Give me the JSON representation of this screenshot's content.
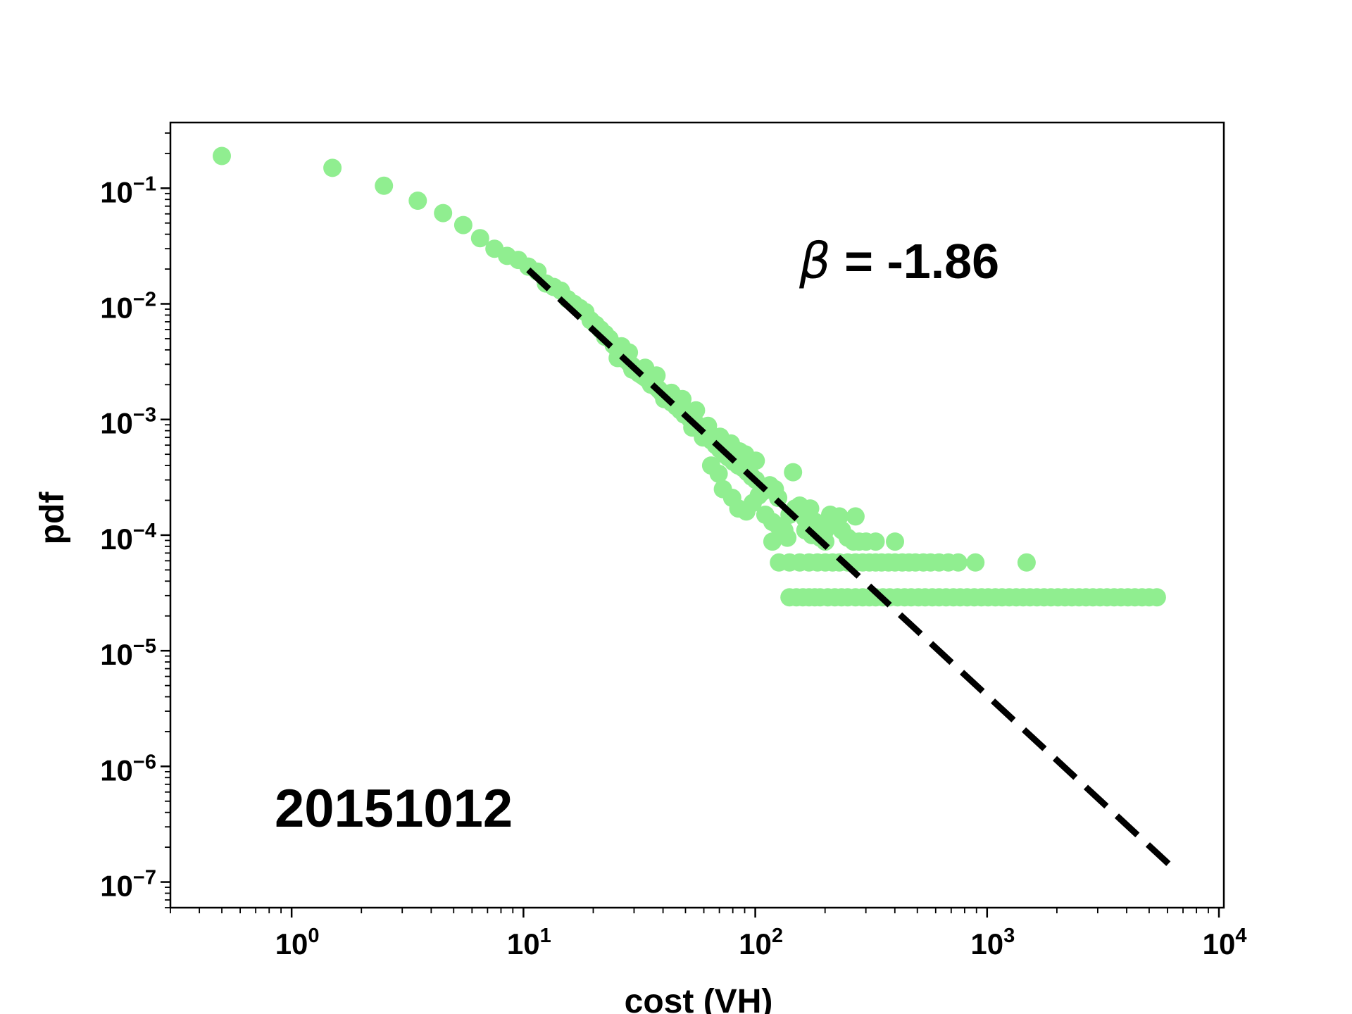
{
  "chart_data": {
    "type": "scatter",
    "title": "",
    "xlabel": "cost (VH)",
    "ylabel": "pdf",
    "xscale": "log",
    "yscale": "log",
    "xlim": [
      0.3,
      10500
    ],
    "ylim": [
      6e-08,
      0.37
    ],
    "grid": false,
    "x_ticks": [
      {
        "base": "10",
        "exp": "0",
        "value": 1
      },
      {
        "base": "10",
        "exp": "1",
        "value": 10
      },
      {
        "base": "10",
        "exp": "2",
        "value": 100
      },
      {
        "base": "10",
        "exp": "3",
        "value": 1000
      },
      {
        "base": "10",
        "exp": "4",
        "value": 10000
      }
    ],
    "y_ticks": [
      {
        "base": "10",
        "exp": "−1",
        "value": 0.1
      },
      {
        "base": "10",
        "exp": "−2",
        "value": 0.01
      },
      {
        "base": "10",
        "exp": "−3",
        "value": 0.001
      },
      {
        "base": "10",
        "exp": "−4",
        "value": 0.0001
      },
      {
        "base": "10",
        "exp": "−5",
        "value": 1e-05
      },
      {
        "base": "10",
        "exp": "−6",
        "value": 1e-06
      },
      {
        "base": "10",
        "exp": "−7",
        "value": 1e-07
      }
    ],
    "annotations": {
      "beta_symbol": "β",
      "beta_value": " = -1.86",
      "date": "20151012"
    },
    "marker_color": "#90ee90",
    "fit_line_color": "#000000",
    "fit": {
      "slope": -1.86,
      "x": [
        10.5,
        6400
      ],
      "y": [
        0.0197,
        1.3e-07
      ]
    },
    "series": [
      {
        "points": [
          [
            0.5,
            0.19
          ],
          [
            1.5,
            0.15
          ],
          [
            2.5,
            0.105
          ],
          [
            3.5,
            0.078
          ],
          [
            4.5,
            0.061
          ],
          [
            5.5,
            0.048
          ],
          [
            6.5,
            0.037
          ],
          [
            7.5,
            0.03
          ],
          [
            8.5,
            0.026
          ],
          [
            9.5,
            0.024
          ],
          [
            10.5,
            0.021
          ],
          [
            11.5,
            0.019
          ],
          [
            12.5,
            0.015
          ],
          [
            13.5,
            0.014
          ],
          [
            14.5,
            0.013
          ],
          [
            15.5,
            0.011
          ],
          [
            16.5,
            0.01
          ],
          [
            17.5,
            0.0092
          ],
          [
            18.5,
            0.0085
          ],
          [
            19.5,
            0.0072
          ],
          [
            20.5,
            0.0066
          ],
          [
            21.5,
            0.006
          ],
          [
            22.5,
            0.0055
          ],
          [
            23.5,
            0.005
          ],
          [
            24.5,
            0.0044
          ],
          [
            25.5,
            0.004
          ],
          [
            26.5,
            0.0036
          ],
          [
            27.5,
            0.0033
          ],
          [
            28.5,
            0.0031
          ],
          [
            29.5,
            0.0029
          ],
          [
            30.5,
            0.0027
          ],
          [
            31.5,
            0.0025
          ],
          [
            32.5,
            0.0024
          ],
          [
            33.5,
            0.0023
          ],
          [
            34.5,
            0.0022
          ],
          [
            35.5,
            0.0021
          ],
          [
            36.5,
            0.002
          ],
          [
            37.5,
            0.0019
          ],
          [
            38.5,
            0.0018
          ],
          [
            39.5,
            0.0017
          ],
          [
            41.5,
            0.0016
          ],
          [
            43.5,
            0.0014
          ],
          [
            45.5,
            0.0013
          ],
          [
            47.5,
            0.0012
          ],
          [
            49.5,
            0.0011
          ],
          [
            52.5,
            0.001
          ],
          [
            55.5,
            0.00092
          ],
          [
            58.5,
            0.00083
          ],
          [
            61.5,
            0.00075
          ],
          [
            64.5,
            0.00066
          ],
          [
            67.5,
            0.0006
          ],
          [
            70.5,
            0.00055
          ],
          [
            73.5,
            0.0005
          ],
          [
            76.5,
            0.00047
          ],
          [
            80.5,
            0.00043
          ],
          [
            84.5,
            0.0004
          ],
          [
            88.5,
            0.00038
          ],
          [
            92.5,
            0.00035
          ],
          [
            96.5,
            0.00032
          ],
          [
            100.5,
            0.0003
          ],
          [
            22.5,
            0.0052
          ],
          [
            26.5,
            0.0043
          ],
          [
            28.5,
            0.0038
          ],
          [
            33.5,
            0.0028
          ],
          [
            37.5,
            0.0024
          ],
          [
            43.5,
            0.0017
          ],
          [
            48.5,
            0.0015
          ],
          [
            55.5,
            0.0012
          ],
          [
            62.5,
            0.00088
          ],
          [
            70.5,
            0.00071
          ],
          [
            78.5,
            0.00062
          ],
          [
            85.5,
            0.00053
          ],
          [
            90.5,
            0.0005
          ],
          [
            100.5,
            0.00044
          ],
          [
            25.5,
            0.0034
          ],
          [
            29.5,
            0.0027
          ],
          [
            35.5,
            0.002
          ],
          [
            40.5,
            0.0015
          ],
          [
            53.5,
            0.00085
          ],
          [
            59.5,
            0.0007
          ],
          [
            64.5,
            0.0004
          ],
          [
            69.5,
            0.00034
          ],
          [
            72.5,
            0.00025
          ],
          [
            79.5,
            0.00021
          ],
          [
            84.5,
            0.00017
          ],
          [
            91.5,
            0.00016
          ],
          [
            97.5,
            0.00019
          ],
          [
            103.5,
            0.00022
          ],
          [
            108.5,
            0.00024
          ],
          [
            115.5,
            0.00027
          ],
          [
            121.5,
            0.00025
          ],
          [
            125.5,
            0.00021
          ],
          [
            110.5,
            0.00015
          ],
          [
            118.5,
            0.00013
          ],
          [
            125.5,
            0.00012
          ],
          [
            133.5,
            0.00011
          ],
          [
            140.5,
            0.00015
          ],
          [
            148.5,
            0.00017
          ],
          [
            118.5,
            8.8e-05
          ],
          [
            128.5,
            0.0001
          ],
          [
            137.5,
            9.5e-05
          ],
          [
            145.5,
            0.00035
          ],
          [
            155.5,
            0.00018
          ],
          [
            163.5,
            0.00014
          ],
          [
            172.5,
            0.00017
          ],
          [
            181.5,
            0.00013
          ],
          [
            190.5,
            0.00012
          ],
          [
            200.5,
            0.00011
          ],
          [
            210.5,
            0.00015
          ],
          [
            222.5,
            0.00013
          ],
          [
            236.5,
            0.00011
          ],
          [
            250.5,
            9.5e-05
          ],
          [
            265.5,
            8.8e-05
          ],
          [
            280.5,
            8.8e-05
          ],
          [
            300.5,
            8.8e-05
          ],
          [
            400.5,
            8.8e-05
          ],
          [
            164.5,
            0.00011
          ],
          [
            175.5,
            0.0001
          ],
          [
            190.5,
            9.5e-05
          ],
          [
            230.5,
            0.000145
          ],
          [
            270.5,
            0.000145
          ],
          [
            330.5,
            8.8e-05
          ],
          [
            200.5,
            8.8e-05
          ],
          [
            126.5,
            5.8e-05
          ],
          [
            140.5,
            5.8e-05
          ],
          [
            155.5,
            5.8e-05
          ],
          [
            170.5,
            5.8e-05
          ],
          [
            185.5,
            5.8e-05
          ],
          [
            200.5,
            5.8e-05
          ],
          [
            215.5,
            5.8e-05
          ],
          [
            230.5,
            5.8e-05
          ],
          [
            250.5,
            5.8e-05
          ],
          [
            270.5,
            5.8e-05
          ],
          [
            290.5,
            5.8e-05
          ],
          [
            310.5,
            5.8e-05
          ],
          [
            330.5,
            5.8e-05
          ],
          [
            350.5,
            5.8e-05
          ],
          [
            375.5,
            5.8e-05
          ],
          [
            400.5,
            5.8e-05
          ],
          [
            430.5,
            5.8e-05
          ],
          [
            460.5,
            5.8e-05
          ],
          [
            490.5,
            5.8e-05
          ],
          [
            530.5,
            5.8e-05
          ],
          [
            570.5,
            5.8e-05
          ],
          [
            620.5,
            5.8e-05
          ],
          [
            680.5,
            5.8e-05
          ],
          [
            750.5,
            5.8e-05
          ],
          [
            890.5,
            5.8e-05
          ],
          [
            1480.5,
            5.8e-05
          ],
          [
            140.5,
            2.9e-05
          ],
          [
            150.5,
            2.9e-05
          ],
          [
            160.5,
            2.9e-05
          ],
          [
            170.5,
            2.9e-05
          ],
          [
            180.5,
            2.9e-05
          ],
          [
            190.5,
            2.9e-05
          ],
          [
            205.5,
            2.9e-05
          ],
          [
            220.5,
            2.9e-05
          ],
          [
            235.5,
            2.9e-05
          ],
          [
            250.5,
            2.9e-05
          ],
          [
            270.5,
            2.9e-05
          ],
          [
            290.5,
            2.9e-05
          ],
          [
            310.5,
            2.9e-05
          ],
          [
            330.5,
            2.9e-05
          ],
          [
            355.5,
            2.9e-05
          ],
          [
            380.5,
            2.9e-05
          ],
          [
            410.5,
            2.9e-05
          ],
          [
            440.5,
            2.9e-05
          ],
          [
            470.5,
            2.9e-05
          ],
          [
            505.5,
            2.9e-05
          ],
          [
            540.5,
            2.9e-05
          ],
          [
            580.5,
            2.9e-05
          ],
          [
            620.5,
            2.9e-05
          ],
          [
            665.5,
            2.9e-05
          ],
          [
            715.5,
            2.9e-05
          ],
          [
            765.5,
            2.9e-05
          ],
          [
            820.5,
            2.9e-05
          ],
          [
            880.5,
            2.9e-05
          ],
          [
            945.5,
            2.9e-05
          ],
          [
            1010.5,
            2.9e-05
          ],
          [
            1085.5,
            2.9e-05
          ],
          [
            1160.5,
            2.9e-05
          ],
          [
            1245.5,
            2.9e-05
          ],
          [
            1335.5,
            2.9e-05
          ],
          [
            1430.5,
            2.9e-05
          ],
          [
            1530.5,
            2.9e-05
          ],
          [
            1640.5,
            2.9e-05
          ],
          [
            1760.5,
            2.9e-05
          ],
          [
            1885.5,
            2.9e-05
          ],
          [
            2020.5,
            2.9e-05
          ],
          [
            2165.5,
            2.9e-05
          ],
          [
            2320.5,
            2.9e-05
          ],
          [
            2490.5,
            2.9e-05
          ],
          [
            2670.5,
            2.9e-05
          ],
          [
            2860.5,
            2.9e-05
          ],
          [
            3070.5,
            2.9e-05
          ],
          [
            3290.5,
            2.9e-05
          ],
          [
            3530.5,
            2.9e-05
          ],
          [
            3780.5,
            2.9e-05
          ],
          [
            4050.5,
            2.9e-05
          ],
          [
            4340.5,
            2.9e-05
          ],
          [
            4660.5,
            2.9e-05
          ],
          [
            5000.5,
            2.9e-05
          ],
          [
            5400.5,
            2.9e-05
          ]
        ]
      }
    ]
  }
}
